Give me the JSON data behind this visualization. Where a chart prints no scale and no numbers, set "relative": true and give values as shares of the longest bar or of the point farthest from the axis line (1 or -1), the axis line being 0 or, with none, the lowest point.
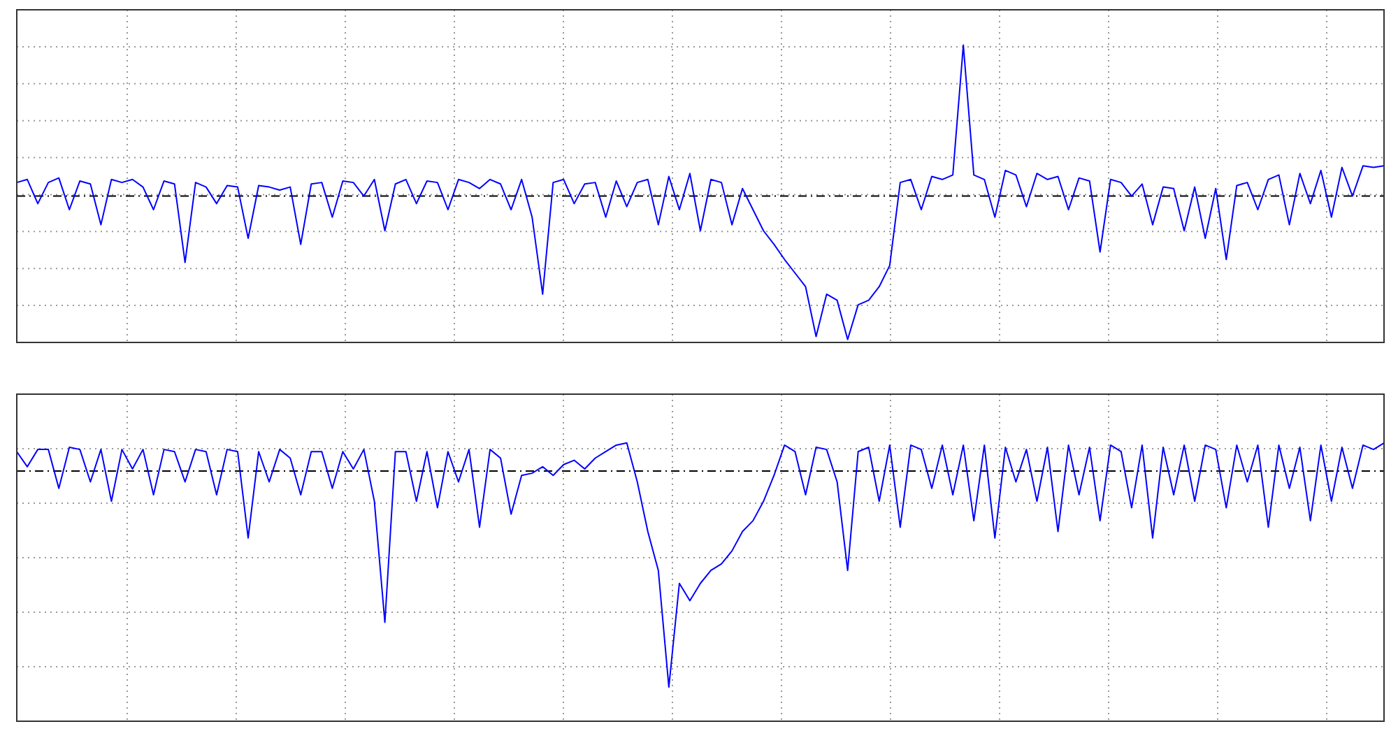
{
  "chart_data": [
    {
      "type": "line",
      "relative": true,
      "grid": true,
      "categories": [
        null,
        null,
        null,
        null,
        null,
        null,
        null,
        null,
        null,
        null,
        null,
        null,
        null,
        null,
        null,
        null,
        null,
        null,
        null,
        null,
        null,
        null,
        null,
        null,
        null,
        null,
        null,
        null,
        null,
        null,
        null,
        null,
        null,
        null,
        null,
        null,
        null,
        null,
        null,
        null,
        null,
        null,
        null,
        null,
        null,
        null,
        null,
        null,
        null,
        null,
        null,
        null,
        null,
        null,
        null,
        null,
        null,
        null,
        null,
        null,
        null,
        null,
        null,
        null,
        null,
        null,
        null,
        null,
        null,
        null,
        null,
        null,
        null,
        null,
        null,
        null,
        null,
        null,
        null,
        null,
        null,
        null,
        null,
        null,
        null,
        null,
        null,
        null,
        null,
        null,
        null,
        null,
        null,
        null,
        null,
        null,
        null,
        null,
        null,
        null,
        null,
        null,
        null,
        null,
        null,
        null,
        null,
        null,
        null,
        null,
        null,
        null,
        null,
        null,
        null,
        null,
        null,
        null,
        null,
        null,
        null,
        null,
        null,
        null,
        null,
        null,
        null,
        null,
        null,
        null,
        null
      ],
      "series": [
        {
          "color": "#0000ff",
          "values": [
            0.09,
            0.11,
            -0.05,
            0.09,
            0.12,
            -0.09,
            0.1,
            0.08,
            -0.19,
            0.11,
            0.09,
            0.11,
            0.06,
            -0.09,
            0.1,
            0.08,
            -0.44,
            0.09,
            0.06,
            -0.05,
            0.07,
            0.06,
            -0.28,
            0.07,
            0.06,
            0.04,
            0.06,
            -0.32,
            0.08,
            0.09,
            -0.14,
            0.1,
            0.09,
            0,
            0.11,
            -0.23,
            0.08,
            0.11,
            -0.05,
            0.1,
            0.09,
            -0.09,
            0.11,
            0.09,
            0.05,
            0.11,
            0.08,
            -0.09,
            0.11,
            -0.14,
            -0.65,
            0.09,
            0.11,
            -0.05,
            0.08,
            0.09,
            -0.14,
            0.1,
            -0.07,
            0.09,
            0.11,
            -0.19,
            0.13,
            -0.09,
            0.15,
            -0.23,
            0.11,
            0.09,
            -0.19,
            0.05,
            -0.09,
            -0.23,
            -0.32,
            -0.42,
            -0.51,
            -0.6,
            -0.93,
            -0.65,
            -0.69,
            -0.95,
            -0.72,
            -0.69,
            -0.6,
            -0.46,
            0.09,
            0.11,
            -0.09,
            0.13,
            0.11,
            0.14,
            1,
            0.14,
            0.11,
            -0.14,
            0.17,
            0.14,
            -0.07,
            0.15,
            0.11,
            0.13,
            -0.09,
            0.12,
            0.1,
            -0.37,
            0.11,
            0.09,
            0,
            0.08,
            -0.19,
            0.06,
            0.05,
            -0.23,
            0.06,
            -0.28,
            0.05,
            -0.42,
            0.07,
            0.09,
            -0.09,
            0.11,
            0.14,
            -0.19,
            0.15,
            -0.05,
            0.17,
            -0.14,
            0.19,
            0,
            0.2,
            0.19,
            0.2
          ]
        }
      ],
      "ref_lines": [
        {
          "axis": "y",
          "value": 0,
          "color": "#000000",
          "line_style": "dashed"
        }
      ]
    },
    {
      "type": "line",
      "relative": true,
      "grid": true,
      "categories": [
        null,
        null,
        null,
        null,
        null,
        null,
        null,
        null,
        null,
        null,
        null,
        null,
        null,
        null,
        null,
        null,
        null,
        null,
        null,
        null,
        null,
        null,
        null,
        null,
        null,
        null,
        null,
        null,
        null,
        null,
        null,
        null,
        null,
        null,
        null,
        null,
        null,
        null,
        null,
        null,
        null,
        null,
        null,
        null,
        null,
        null,
        null,
        null,
        null,
        null,
        null,
        null,
        null,
        null,
        null,
        null,
        null,
        null,
        null,
        null,
        null,
        null,
        null,
        null,
        null,
        null,
        null,
        null,
        null,
        null,
        null,
        null,
        null,
        null,
        null,
        null,
        null,
        null,
        null,
        null,
        null,
        null,
        null,
        null,
        null,
        null,
        null,
        null,
        null,
        null,
        null,
        null,
        null,
        null,
        null,
        null,
        null,
        null,
        null,
        null,
        null,
        null,
        null,
        null,
        null,
        null,
        null,
        null,
        null,
        null,
        null,
        null,
        null,
        null,
        null,
        null,
        null,
        null,
        null,
        null,
        null,
        null,
        null,
        null,
        null,
        null,
        null,
        null,
        null,
        null,
        null
      ],
      "series": [
        {
          "color": "#0000ff",
          "values": [
            0.09,
            0.02,
            0.1,
            0.1,
            -0.08,
            0.11,
            0.1,
            -0.05,
            0.1,
            -0.14,
            0.1,
            0.01,
            0.1,
            -0.11,
            0.1,
            0.09,
            -0.05,
            0.1,
            0.09,
            -0.11,
            0.1,
            0.09,
            -0.31,
            0.09,
            -0.05,
            0.1,
            0.06,
            -0.11,
            0.09,
            0.09,
            -0.08,
            0.09,
            0.01,
            0.1,
            -0.14,
            -0.7,
            0.09,
            0.09,
            -0.14,
            0.09,
            -0.17,
            0.09,
            -0.05,
            0.1,
            -0.26,
            0.1,
            0.06,
            -0.2,
            -0.02,
            -0.01,
            0.02,
            -0.02,
            0.03,
            0.05,
            0.01,
            0.06,
            0.09,
            0.12,
            0.13,
            -0.05,
            -0.28,
            -0.46,
            -1,
            -0.52,
            -0.6,
            -0.52,
            -0.46,
            -0.43,
            -0.37,
            -0.28,
            -0.23,
            -0.14,
            -0.02,
            0.12,
            0.09,
            -0.11,
            0.11,
            0.1,
            -0.05,
            -0.46,
            0.09,
            0.11,
            -0.14,
            0.12,
            -0.26,
            0.12,
            0.1,
            -0.08,
            0.12,
            -0.11,
            0.12,
            -0.23,
            0.12,
            -0.31,
            0.11,
            -0.05,
            0.1,
            -0.14,
            0.11,
            -0.28,
            0.12,
            -0.11,
            0.11,
            -0.23,
            0.12,
            0.09,
            -0.17,
            0.12,
            -0.31,
            0.11,
            -0.11,
            0.12,
            -0.14,
            0.12,
            0.1,
            -0.17,
            0.12,
            -0.05,
            0.12,
            -0.26,
            0.12,
            -0.08,
            0.11,
            -0.23,
            0.12,
            -0.14,
            0.11,
            -0.08,
            0.12,
            0.1,
            0.13
          ]
        }
      ],
      "ref_lines": [
        {
          "axis": "y",
          "value": 0,
          "color": "#000000",
          "line_style": "dashed"
        }
      ]
    }
  ]
}
